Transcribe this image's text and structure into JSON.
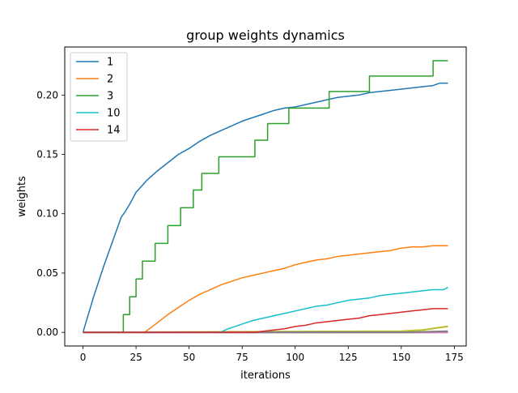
{
  "chart_data": {
    "type": "line",
    "title": "group weights dynamics",
    "xlabel": "iterations",
    "ylabel": "weights",
    "xlim": [
      -8.6,
      180.6
    ],
    "ylim": [
      -0.0115,
      0.2405
    ],
    "xticks": [
      0,
      25,
      50,
      75,
      100,
      125,
      150,
      175
    ],
    "xtick_labels": [
      "0",
      "25",
      "50",
      "75",
      "100",
      "125",
      "150",
      "175"
    ],
    "yticks": [
      0.0,
      0.05,
      0.1,
      0.15,
      0.2
    ],
    "ytick_labels": [
      "0.00",
      "0.05",
      "0.10",
      "0.15",
      "0.20"
    ],
    "grid": false,
    "legend_position": "upper left",
    "colors": {
      "1": "#1f77b4",
      "2": "#ff7f0e",
      "3": "#2ca02c",
      "10": "#17becf",
      "14": "#d62728",
      "extra_grey": "#7f7f7f",
      "extra_olive": "#bcbd22",
      "extra_purple": "#9467bd",
      "extra_brown": "#8c564b",
      "extra_pink": "#e377c2"
    },
    "series": [
      {
        "name": "1",
        "color": "#1f77b4",
        "x": [
          0,
          5,
          10,
          15,
          18,
          20,
          22,
          25,
          28,
          30,
          35,
          40,
          45,
          50,
          55,
          60,
          65,
          70,
          75,
          80,
          85,
          90,
          95,
          100,
          105,
          110,
          115,
          120,
          125,
          130,
          135,
          140,
          145,
          150,
          155,
          160,
          165,
          168,
          172
        ],
        "y": [
          0.0,
          0.03,
          0.057,
          0.082,
          0.097,
          0.102,
          0.108,
          0.118,
          0.124,
          0.128,
          0.136,
          0.143,
          0.15,
          0.155,
          0.161,
          0.166,
          0.17,
          0.174,
          0.178,
          0.181,
          0.184,
          0.187,
          0.189,
          0.19,
          0.192,
          0.194,
          0.196,
          0.198,
          0.199,
          0.2,
          0.202,
          0.203,
          0.204,
          0.205,
          0.206,
          0.207,
          0.208,
          0.21,
          0.21
        ]
      },
      {
        "name": "2",
        "color": "#ff7f0e",
        "x": [
          0,
          29,
          32,
          35,
          40,
          45,
          50,
          55,
          60,
          65,
          70,
          75,
          80,
          85,
          90,
          95,
          100,
          105,
          110,
          115,
          120,
          125,
          130,
          135,
          140,
          145,
          150,
          155,
          160,
          165,
          172
        ],
        "y": [
          0.0,
          0.0,
          0.004,
          0.008,
          0.015,
          0.021,
          0.027,
          0.032,
          0.036,
          0.04,
          0.043,
          0.046,
          0.048,
          0.05,
          0.052,
          0.054,
          0.057,
          0.059,
          0.061,
          0.062,
          0.064,
          0.065,
          0.066,
          0.067,
          0.068,
          0.069,
          0.071,
          0.072,
          0.072,
          0.073,
          0.073
        ]
      },
      {
        "name": "3",
        "color": "#2ca02c",
        "step": true,
        "x": [
          0,
          18,
          19,
          22,
          25,
          28,
          34,
          40,
          46,
          52,
          56,
          64,
          70,
          81,
          87,
          97,
          109,
          116,
          135,
          165,
          172
        ],
        "y": [
          0.0,
          0.0,
          0.015,
          0.03,
          0.045,
          0.06,
          0.075,
          0.09,
          0.105,
          0.12,
          0.134,
          0.148,
          0.148,
          0.162,
          0.176,
          0.189,
          0.189,
          0.203,
          0.216,
          0.229,
          0.229
        ]
      },
      {
        "name": "10",
        "color": "#17becf",
        "x": [
          0,
          65,
          67,
          70,
          75,
          80,
          85,
          90,
          95,
          100,
          105,
          110,
          115,
          120,
          125,
          130,
          135,
          140,
          145,
          150,
          155,
          160,
          165,
          170,
          172
        ],
        "y": [
          0.0,
          0.0,
          0.002,
          0.004,
          0.007,
          0.01,
          0.012,
          0.014,
          0.016,
          0.018,
          0.02,
          0.022,
          0.023,
          0.025,
          0.027,
          0.028,
          0.029,
          0.031,
          0.032,
          0.033,
          0.034,
          0.035,
          0.036,
          0.036,
          0.038
        ]
      },
      {
        "name": "14",
        "color": "#d62728",
        "x": [
          0,
          81,
          85,
          90,
          95,
          100,
          105,
          110,
          115,
          120,
          125,
          130,
          135,
          140,
          145,
          150,
          155,
          160,
          165,
          172
        ],
        "y": [
          0.0,
          0.0,
          0.001,
          0.002,
          0.003,
          0.005,
          0.006,
          0.008,
          0.009,
          0.01,
          0.011,
          0.012,
          0.014,
          0.015,
          0.016,
          0.017,
          0.018,
          0.019,
          0.02,
          0.02
        ]
      }
    ],
    "extra_series": [
      {
        "color": "#bcbd22",
        "x": [
          0,
          150,
          160,
          168,
          172
        ],
        "y": [
          0.0,
          0.001,
          0.002,
          0.004,
          0.005
        ]
      },
      {
        "color": "#9467bd",
        "x": [
          0,
          172
        ],
        "y": [
          0.0,
          0.0
        ]
      },
      {
        "color": "#8c564b",
        "x": [
          0,
          172
        ],
        "y": [
          0.0,
          0.0
        ]
      },
      {
        "color": "#e377c2",
        "x": [
          0,
          172
        ],
        "y": [
          0.0,
          0.0
        ]
      },
      {
        "color": "#7f7f7f",
        "x": [
          0,
          150,
          172
        ],
        "y": [
          0.0,
          0.0,
          0.001
        ]
      }
    ]
  }
}
